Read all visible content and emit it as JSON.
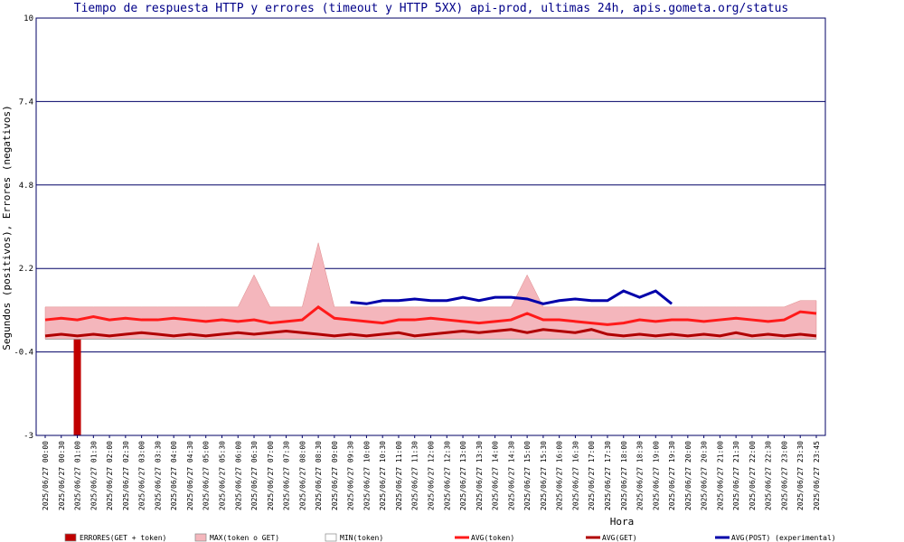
{
  "chart_data": {
    "type": "combo",
    "title": "Tiempo de respuesta HTTP y errores (timeout y HTTP 5XX) api-prod, ultimas 24h, apis.gometa.org/status",
    "y_label": "Segundos (positivos), Errores (negativos)",
    "x_label": "Hora",
    "ylim": [
      -3,
      10
    ],
    "yticks": [
      -3,
      -0.4,
      2.2,
      4.8,
      7.4,
      10
    ],
    "grid": true,
    "categories": [
      "2025/06/27 00:00",
      "2025/06/27 00:30",
      "2025/06/27 01:00",
      "2025/06/27 01:30",
      "2025/06/27 02:00",
      "2025/06/27 02:30",
      "2025/06/27 03:00",
      "2025/06/27 03:30",
      "2025/06/27 04:00",
      "2025/06/27 04:30",
      "2025/06/27 05:00",
      "2025/06/27 05:30",
      "2025/06/27 06:00",
      "2025/06/27 06:30",
      "2025/06/27 07:00",
      "2025/06/27 07:30",
      "2025/06/27 08:00",
      "2025/06/27 08:30",
      "2025/06/27 09:00",
      "2025/06/27 09:30",
      "2025/06/27 10:00",
      "2025/06/27 10:30",
      "2025/06/27 11:00",
      "2025/06/27 11:30",
      "2025/06/27 12:00",
      "2025/06/27 12:30",
      "2025/06/27 13:00",
      "2025/06/27 13:30",
      "2025/06/27 14:00",
      "2025/06/27 14:30",
      "2025/06/27 15:00",
      "2025/06/27 15:30",
      "2025/06/27 16:00",
      "2025/06/27 16:30",
      "2025/06/27 17:00",
      "2025/06/27 17:30",
      "2025/06/27 18:00",
      "2025/06/27 18:30",
      "2025/06/27 19:00",
      "2025/06/27 19:30",
      "2025/06/27 20:00",
      "2025/06/27 20:30",
      "2025/06/27 21:00",
      "2025/06/27 21:30",
      "2025/06/27 22:00",
      "2025/06/27 22:30",
      "2025/06/27 23:00",
      "2025/06/27 23:30",
      "2025/06/27 23:45"
    ],
    "series": [
      {
        "name": "ERRORES(GET + token)",
        "type": "bar",
        "color": "#c00000",
        "values": [
          0,
          0,
          -3,
          0,
          0,
          0,
          0,
          0,
          0,
          0,
          0,
          0,
          0,
          0,
          0,
          0,
          0,
          0,
          0,
          0,
          0,
          0,
          0,
          0,
          0,
          0,
          0,
          0,
          0,
          0,
          0,
          0,
          0,
          0,
          0,
          0,
          0,
          0,
          0,
          0,
          0,
          0,
          0,
          0,
          0,
          0,
          0,
          0,
          0
        ]
      },
      {
        "name": "MAX(token o GET)",
        "type": "area",
        "color": "#f4b6bc",
        "values": [
          1,
          1,
          1,
          1,
          1,
          1,
          1,
          1,
          1,
          1,
          1,
          1,
          1,
          2,
          1,
          1,
          1,
          3,
          1,
          1,
          1,
          1,
          1,
          1,
          1,
          1,
          1,
          1,
          1,
          1,
          2,
          1,
          1,
          1,
          1,
          1,
          1,
          1,
          1,
          1,
          1,
          1,
          1,
          1,
          1,
          1,
          1,
          1.2,
          1.2
        ]
      },
      {
        "name": "MIN(token)",
        "type": "minline",
        "color": "#999999",
        "values": [
          0,
          0,
          0,
          0,
          0,
          0,
          0,
          0,
          0,
          0,
          0,
          0,
          0,
          0,
          0,
          0,
          0,
          0,
          0,
          0,
          0,
          0,
          0,
          0,
          0,
          0,
          0,
          0,
          0,
          0,
          0,
          0,
          0,
          0,
          0,
          0,
          0,
          0,
          0,
          0,
          0,
          0,
          0,
          0,
          0,
          0,
          0,
          0,
          0
        ]
      },
      {
        "name": "AVG(token)",
        "type": "line",
        "color": "#ff1a1a",
        "values": [
          0.6,
          0.65,
          0.6,
          0.7,
          0.6,
          0.65,
          0.6,
          0.6,
          0.65,
          0.6,
          0.55,
          0.6,
          0.55,
          0.6,
          0.5,
          0.55,
          0.6,
          1.0,
          0.65,
          0.6,
          0.55,
          0.5,
          0.6,
          0.6,
          0.65,
          0.6,
          0.55,
          0.5,
          0.55,
          0.6,
          0.8,
          0.6,
          0.6,
          0.55,
          0.5,
          0.45,
          0.5,
          0.6,
          0.55,
          0.6,
          0.6,
          0.55,
          0.6,
          0.65,
          0.6,
          0.55,
          0.6,
          0.85,
          0.8
        ]
      },
      {
        "name": "AVG(GET)",
        "type": "line",
        "color": "#b00000",
        "values": [
          0.1,
          0.15,
          0.1,
          0.15,
          0.1,
          0.15,
          0.2,
          0.15,
          0.1,
          0.15,
          0.1,
          0.15,
          0.2,
          0.15,
          0.2,
          0.25,
          0.2,
          0.15,
          0.1,
          0.15,
          0.1,
          0.15,
          0.2,
          0.1,
          0.15,
          0.2,
          0.25,
          0.2,
          0.25,
          0.3,
          0.2,
          0.3,
          0.25,
          0.2,
          0.3,
          0.15,
          0.1,
          0.15,
          0.1,
          0.15,
          0.1,
          0.15,
          0.1,
          0.2,
          0.1,
          0.15,
          0.1,
          0.15,
          0.1
        ]
      },
      {
        "name": "AVG(POST) (experimental)",
        "type": "line",
        "color": "#0000aa",
        "values": [
          null,
          null,
          null,
          null,
          null,
          null,
          null,
          null,
          null,
          null,
          null,
          null,
          null,
          null,
          null,
          null,
          null,
          null,
          null,
          1.15,
          1.1,
          1.2,
          1.2,
          1.25,
          1.2,
          1.2,
          1.3,
          1.2,
          1.3,
          1.3,
          1.25,
          1.1,
          1.2,
          1.25,
          1.2,
          1.2,
          1.5,
          1.3,
          1.5,
          1.1,
          null,
          null,
          null,
          null,
          null,
          null,
          null,
          null,
          null
        ]
      }
    ]
  }
}
